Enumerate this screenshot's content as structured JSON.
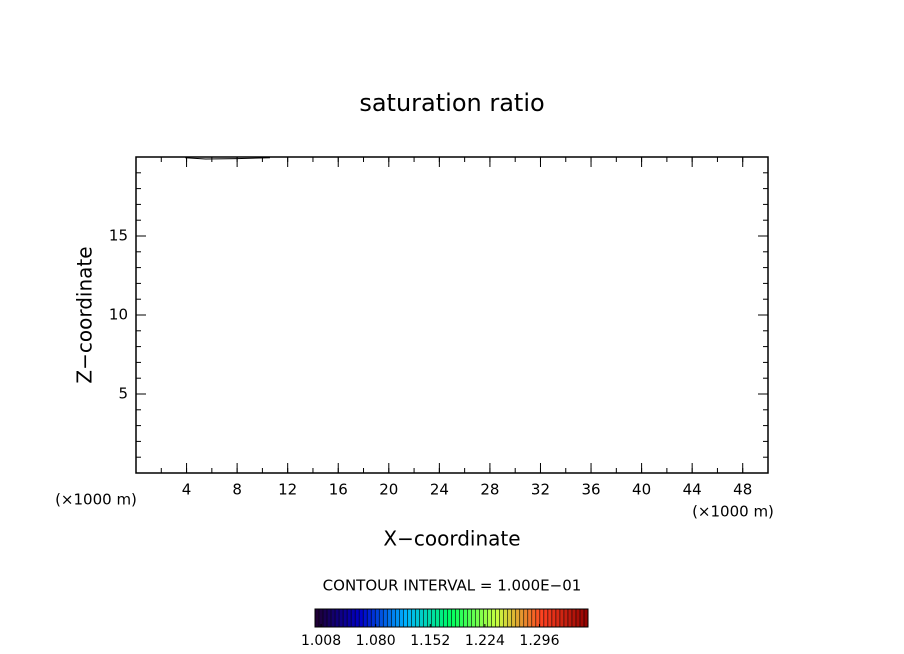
{
  "chart_data": {
    "type": "contour",
    "title": "saturation ratio",
    "xlabel": "X−coordinate",
    "ylabel": "Z−coordinate",
    "x_unit": "(×1000 m)",
    "y_unit": "(×1000 m)",
    "xlim": [
      0,
      50
    ],
    "ylim": [
      0,
      20
    ],
    "xticks": [
      4,
      8,
      12,
      16,
      20,
      24,
      28,
      32,
      36,
      40,
      44,
      48
    ],
    "yticks": [
      5,
      10,
      15
    ],
    "xminor": 2,
    "yminor": 1,
    "contours": [
      {
        "x": [
          3.9,
          5.5,
          8,
          10.6
        ],
        "y": [
          19.95,
          19.87,
          19.9,
          19.95
        ],
        "color": "#000000"
      }
    ],
    "contour_interval_text": "CONTOUR INTERVAL = 1.000E−01",
    "colorbar": {
      "lim": [
        1.0,
        1.36
      ],
      "ticks": [
        {
          "value": 1.008,
          "label": "1.008"
        },
        {
          "value": 1.08,
          "label": "1.080"
        },
        {
          "value": 1.152,
          "label": "1.152"
        },
        {
          "value": 1.224,
          "label": "1.224"
        },
        {
          "value": 1.296,
          "label": "1.296"
        }
      ],
      "colors": [
        "#200030",
        "#0000c8",
        "#00b4ff",
        "#00ff60",
        "#c8ff40",
        "#ff4020",
        "#900000"
      ]
    }
  }
}
